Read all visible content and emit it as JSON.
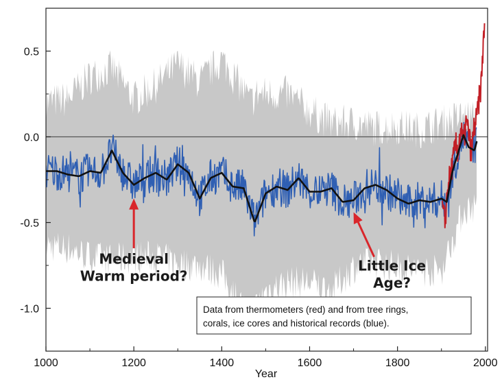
{
  "chart_data": {
    "type": "line",
    "title": "",
    "xlabel": "Year",
    "ylabel": "",
    "xlim": [
      1000,
      2000
    ],
    "ylim": [
      -1.3,
      0.8
    ],
    "x_ticks": [
      1000,
      1200,
      1400,
      1600,
      1800,
      2000
    ],
    "y_ticks": [
      0.5,
      0.0,
      -0.5,
      -1.0
    ],
    "x_tick_labels": [
      "1000",
      "1200",
      "1400",
      "1600",
      "1800",
      "2000"
    ],
    "y_tick_labels": [
      "0.5",
      "0.0",
      "-0.5",
      "-1.0"
    ],
    "grid": false,
    "reference_line": 0.0,
    "colors": {
      "uncertainty": "#c8c8c8",
      "reconstruction": "#2f5fb3",
      "smoothed": "#111111",
      "instrumental": "#c21f26",
      "arrow": "#d9262b"
    },
    "series": [
      {
        "key": "smoothed",
        "x": [
          1000,
          1025,
          1050,
          1075,
          1100,
          1125,
          1150,
          1175,
          1200,
          1225,
          1250,
          1275,
          1300,
          1325,
          1350,
          1375,
          1400,
          1425,
          1450,
          1475,
          1500,
          1525,
          1550,
          1575,
          1600,
          1625,
          1650,
          1675,
          1700,
          1725,
          1750,
          1775,
          1800,
          1825,
          1850,
          1875,
          1900,
          1912,
          1925,
          1937,
          1950,
          1962,
          1975,
          1980
        ],
        "values": [
          -0.2,
          -0.2,
          -0.22,
          -0.23,
          -0.2,
          -0.21,
          -0.08,
          -0.21,
          -0.28,
          -0.24,
          -0.21,
          -0.25,
          -0.16,
          -0.21,
          -0.36,
          -0.24,
          -0.21,
          -0.29,
          -0.3,
          -0.5,
          -0.33,
          -0.29,
          -0.31,
          -0.24,
          -0.32,
          -0.32,
          -0.3,
          -0.38,
          -0.37,
          -0.3,
          -0.28,
          -0.31,
          -0.36,
          -0.39,
          -0.37,
          -0.38,
          -0.36,
          -0.38,
          -0.2,
          -0.1,
          0.01,
          -0.06,
          -0.08,
          -0.03
        ]
      },
      {
        "key": "instrumental",
        "x": [
          1902,
          1908,
          1914,
          1920,
          1926,
          1932,
          1938,
          1944,
          1950,
          1956,
          1962,
          1968,
          1974,
          1980,
          1985,
          1990,
          1993,
          1995,
          1998
        ],
        "values": [
          -0.42,
          -0.5,
          -0.3,
          -0.22,
          -0.15,
          -0.05,
          -0.08,
          0.05,
          -0.05,
          0.08,
          0.02,
          -0.1,
          0.05,
          0.1,
          0.2,
          0.3,
          0.42,
          0.55,
          0.68
        ]
      }
    ],
    "reconstruction": {
      "seed": 7,
      "noise_amplitude": 0.11,
      "step_years": 1.5,
      "end_year": 1980
    },
    "uncertainty": {
      "x": [
        1000,
        1050,
        1100,
        1150,
        1200,
        1250,
        1300,
        1350,
        1400,
        1450,
        1465,
        1480,
        1500,
        1550,
        1600,
        1650,
        1700,
        1750,
        1800,
        1850,
        1900,
        1950,
        1980
      ],
      "upper": [
        0.2,
        0.22,
        0.35,
        0.4,
        0.22,
        0.3,
        0.42,
        0.32,
        0.45,
        0.27,
        0.2,
        0.25,
        0.25,
        0.25,
        0.15,
        0.08,
        0.08,
        0.05,
        0.06,
        0.04,
        0.08,
        0.12,
        0.1
      ],
      "lower": [
        -0.63,
        -0.65,
        -0.7,
        -0.72,
        -0.7,
        -0.7,
        -0.74,
        -0.75,
        -0.8,
        -1.0,
        -1.05,
        -0.98,
        -0.9,
        -0.85,
        -0.85,
        -0.9,
        -0.76,
        -0.73,
        -0.76,
        -0.78,
        -0.78,
        -0.43,
        -0.4
      ]
    },
    "annotations": [
      {
        "key": "medieval",
        "line1": "Medieval",
        "line2": "Warm period?",
        "x": 1200,
        "arrow_tip_y": -0.36,
        "arrow_tail_y": -0.65,
        "text_x": 1200,
        "text_y": -0.74
      },
      {
        "key": "little-ice-age",
        "line1": "Little Ice",
        "line2": "Age?",
        "x": 1700,
        "arrow_tip_y": -0.44,
        "arrow_tail_y": -0.7,
        "text_x": 1700,
        "text_y": -0.78
      }
    ],
    "legend": {
      "line1": "Data from thermometers (red) and from tree rings,",
      "line2": "corals, ice cores and historical records (blue).",
      "position": "bottom-right"
    }
  }
}
